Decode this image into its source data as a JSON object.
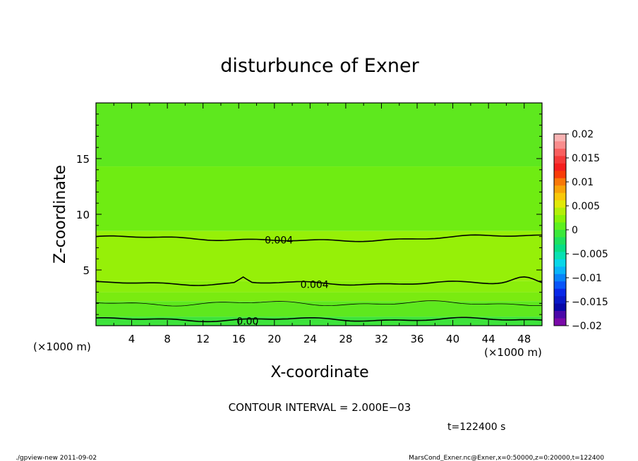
{
  "chart_data": {
    "type": "heatmap",
    "title": "disturbunce of Exner",
    "xlabel": "X-coordinate",
    "ylabel": "Z-coordinate",
    "x_unit_left": "(×1000 m)",
    "x_unit_right": "(×1000 m)",
    "xlim": [
      0,
      50
    ],
    "ylim": [
      0,
      20
    ],
    "xticks": [
      4,
      8,
      12,
      16,
      20,
      24,
      28,
      32,
      36,
      40,
      44,
      48
    ],
    "xtick_labels": [
      "4",
      "8",
      "12",
      "16",
      "20",
      "24",
      "28",
      "32",
      "36",
      "40",
      "44",
      "48"
    ],
    "yticks": [
      5,
      10,
      15
    ],
    "ytick_labels": [
      "5",
      "10",
      "15"
    ],
    "colorbar": {
      "levels": [
        0.02,
        0.015,
        0.01,
        0.005,
        0,
        -0.005,
        -0.01,
        -0.015,
        -0.02
      ],
      "labels": [
        "0.02",
        "0.015",
        "0.01",
        "0.005",
        "0",
        "−0.005",
        "−0.01",
        "−0.015",
        "−0.02"
      ],
      "colors_top_to_bottom": [
        "#f9b3b3",
        "#f98d8d",
        "#f95f5f",
        "#f53a3a",
        "#f51e1e",
        "#f93c08",
        "#f97808",
        "#f9a308",
        "#f9c808",
        "#e1e908",
        "#b3ef08",
        "#88f208",
        "#5ef01e",
        "#3be83b",
        "#1ee15f",
        "#08de85",
        "#08e1b3",
        "#08d7e8",
        "#08b4f9",
        "#0884f9",
        "#0855f9",
        "#0828e8",
        "#0818c8",
        "#0808a8",
        "#4a08a8",
        "#7a0aa8"
      ]
    },
    "contour_labels": [
      {
        "text": "0.004",
        "x": 20.5,
        "z": 7.7
      },
      {
        "text": "0.004",
        "x": 24.5,
        "z": 3.7
      },
      {
        "text": "0.00",
        "x": 17.0,
        "z": 0.4
      }
    ],
    "field_bands_top_to_bottom": [
      {
        "z_top": 20.0,
        "color": "#5ee81e"
      },
      {
        "z_top": 14.3,
        "color": "#6fec12"
      },
      {
        "z_top": 8.5,
        "color": "#96f008"
      },
      {
        "z_top": 4.0,
        "color": "#8bee0c"
      },
      {
        "z_top": 3.0,
        "color": "#7aeb10"
      },
      {
        "z_top": 2.2,
        "color": "#5ee81e"
      },
      {
        "z_top": 0.8,
        "color": "#3de33b"
      }
    ],
    "contour_interval_text": "CONTOUR INTERVAL = 2.000E−03",
    "time_text": "t=122400  s"
  },
  "footer": {
    "left": "./gpview-new   2011-09-02",
    "right": "MarsCond_Exner.nc@Exner,x=0:50000,z=0:20000,t=122400"
  }
}
